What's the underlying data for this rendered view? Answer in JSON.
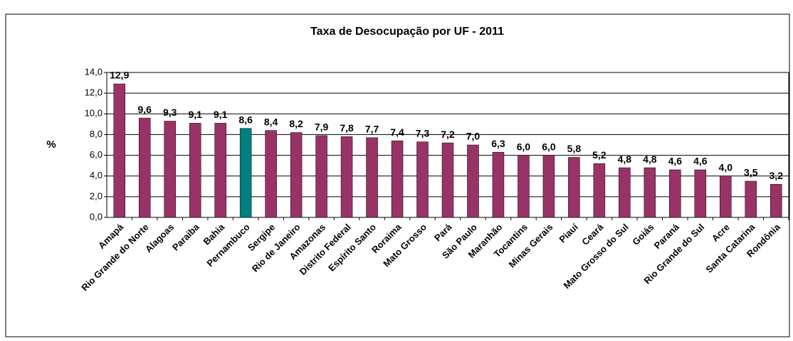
{
  "chart_data": {
    "type": "bar",
    "title": "Taxa de Desocupação por UF -  2011",
    "y_label": "%",
    "categories": [
      "Amapá",
      "Rio Grande do Norte",
      "Alagoas",
      "Paraiba",
      "Bahia",
      "Pernambuco",
      "Sergipe",
      "Rio de Janeiro",
      "Amazonas",
      "Distrito Federal",
      "Espírito Santo",
      "Roraima",
      "Mato Grosso",
      "Pará",
      "São Paulo",
      "Maranhão",
      "Tocantins",
      "Minas Gerais",
      "Piauí",
      "Ceará",
      "Mato Grosso do Sul",
      "Goiás",
      "Paraná",
      "Rio Grande do Sul",
      "Acre",
      "Santa Catarina",
      "Rondônia"
    ],
    "values": [
      12.9,
      9.6,
      9.3,
      9.1,
      9.1,
      8.6,
      8.4,
      8.2,
      7.9,
      7.8,
      7.7,
      7.4,
      7.3,
      7.2,
      7.0,
      6.3,
      6.0,
      6.0,
      5.8,
      5.2,
      4.8,
      4.8,
      4.6,
      4.6,
      4.0,
      3.5,
      3.2
    ],
    "value_labels": [
      "12,9",
      "9,6",
      "9,3",
      "9,1",
      "9,1",
      "8,6",
      "8,4",
      "8,2",
      "7,9",
      "7,8",
      "7,7",
      "7,4",
      "7,3",
      "7,2",
      "7,0",
      "6,3",
      "6,0",
      "6,0",
      "5,8",
      "5,2",
      "4,8",
      "4,8",
      "4,6",
      "4,6",
      "4,0",
      "3,5",
      "3,2"
    ],
    "colors": [
      "#993366",
      "#993366",
      "#993366",
      "#993366",
      "#993366",
      "#008080",
      "#993366",
      "#993366",
      "#993366",
      "#993366",
      "#993366",
      "#993366",
      "#993366",
      "#993366",
      "#993366",
      "#993366",
      "#993366",
      "#993366",
      "#993366",
      "#993366",
      "#993366",
      "#993366",
      "#993366",
      "#993366",
      "#993366",
      "#993366",
      "#993366"
    ],
    "ylim": [
      0,
      14
    ],
    "yticks": [
      {
        "value": 0,
        "label": "0,0"
      },
      {
        "value": 2,
        "label": "2,0"
      },
      {
        "value": 4,
        "label": "4,0"
      },
      {
        "value": 6,
        "label": "6,0"
      },
      {
        "value": 8,
        "label": "8,0"
      },
      {
        "value": 10,
        "label": "10,0"
      },
      {
        "value": 12,
        "label": "12,0"
      },
      {
        "value": 14,
        "label": "14,0"
      }
    ],
    "grid": true
  }
}
